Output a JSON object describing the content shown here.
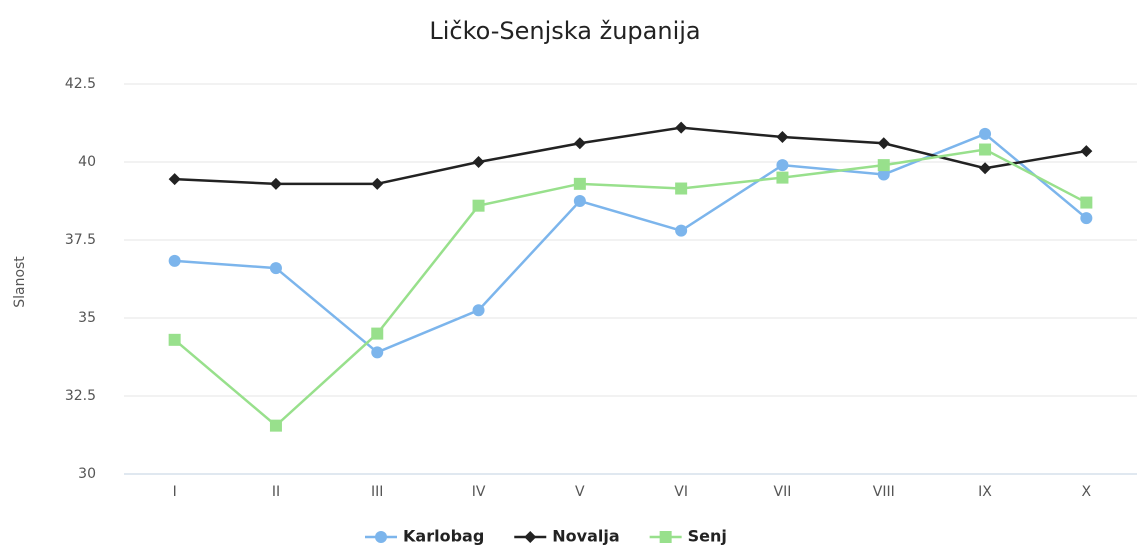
{
  "chart_data": {
    "type": "line",
    "title": "Ličko-Senjska županija",
    "y_label": "Slanost",
    "categories": [
      "I",
      "II",
      "III",
      "IV",
      "V",
      "VI",
      "VII",
      "VIII",
      "IX",
      "X"
    ],
    "series": [
      {
        "name": "Karlobag",
        "color": "#7cb5ec",
        "marker": "circle",
        "values": [
          36.83,
          36.6,
          33.9,
          35.25,
          38.75,
          37.8,
          39.9,
          39.6,
          40.9,
          38.2
        ]
      },
      {
        "name": "Novalja",
        "color": "#222222",
        "marker": "diamond",
        "values": [
          39.45,
          39.3,
          39.3,
          40.0,
          40.6,
          41.1,
          40.8,
          40.6,
          39.8,
          40.35
        ]
      },
      {
        "name": "Senj",
        "color": "#98e08c",
        "marker": "square",
        "values": [
          34.3,
          31.55,
          34.5,
          38.6,
          39.3,
          39.15,
          39.5,
          39.9,
          40.4,
          38.7
        ]
      }
    ],
    "ylim": [
      30,
      42.5
    ],
    "yticks": [
      30,
      32.5,
      35,
      37.5,
      40,
      42.5
    ],
    "grid": true,
    "legend": "bottom"
  }
}
